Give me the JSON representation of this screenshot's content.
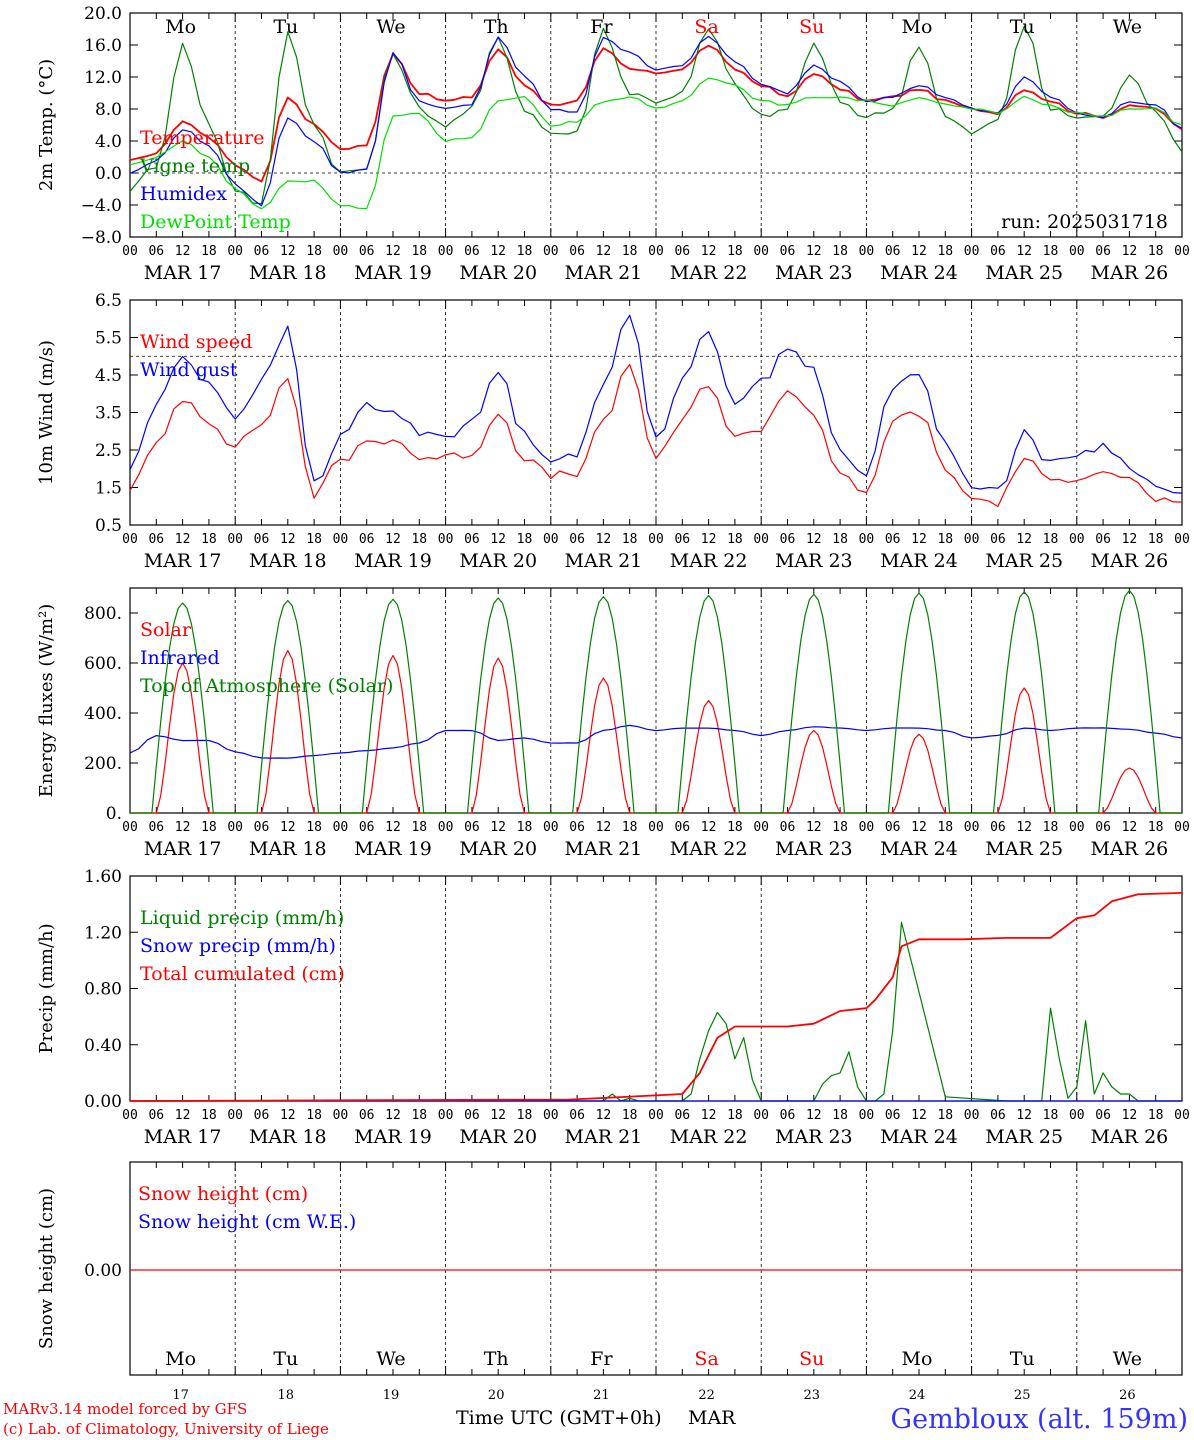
{
  "run_label": "run: 2025031718",
  "footer": {
    "model": "MARv3.14 model forced by GFS",
    "credit": "(c) Lab. of Climatology, University of Liege",
    "xlabel": "Time UTC (GMT+0h)",
    "month": "MAR",
    "station": "Gembloux (alt. 159m)"
  },
  "days": [
    {
      "dow": "Mo",
      "date": "MAR 17",
      "num": "17",
      "weekend": false
    },
    {
      "dow": "Tu",
      "date": "MAR 18",
      "num": "18",
      "weekend": false
    },
    {
      "dow": "We",
      "date": "MAR 19",
      "num": "19",
      "weekend": false
    },
    {
      "dow": "Th",
      "date": "MAR 20",
      "num": "20",
      "weekend": false
    },
    {
      "dow": "Fr",
      "date": "MAR 21",
      "num": "21",
      "weekend": false
    },
    {
      "dow": "Sa",
      "date": "MAR 22",
      "num": "22",
      "weekend": true
    },
    {
      "dow": "Su",
      "date": "MAR 23",
      "num": "23",
      "weekend": true
    },
    {
      "dow": "Mo",
      "date": "MAR 24",
      "num": "24",
      "weekend": false
    },
    {
      "dow": "Tu",
      "date": "MAR 25",
      "num": "25",
      "weekend": false
    },
    {
      "dow": "We",
      "date": "MAR 26",
      "num": "26",
      "weekend": false
    }
  ],
  "hour_ticks": [
    "00",
    "06",
    "12",
    "18"
  ],
  "colors": {
    "red": "#ff0000",
    "blue": "#0000ff",
    "dark_green": "#008000",
    "light_green": "#00e000",
    "station": "#3333ff",
    "weekend": "#ff0000"
  },
  "chart_data": [
    {
      "type": "line",
      "ylabel": "2m Temp. (°C)",
      "ylim": [
        -8,
        20
      ],
      "yticks": [
        20,
        16,
        12,
        8,
        4,
        0,
        -4,
        -8
      ],
      "ytick_labels": [
        "20.0",
        "16.0",
        "12.0",
        "8.0",
        "4.0",
        "0.0",
        "−4.0",
        "−8.0"
      ],
      "dashed_y": 0,
      "series": [
        {
          "name": "Temperature",
          "color": "#ff0000",
          "x_hours": [
            0,
            6,
            12,
            18,
            24,
            30,
            36,
            42,
            48,
            54,
            60,
            66,
            72,
            78,
            84,
            90,
            96,
            102,
            108,
            114,
            120,
            126,
            132,
            138,
            144,
            150,
            156,
            162,
            168,
            174,
            180,
            186,
            192,
            198,
            204,
            210,
            216,
            222,
            228,
            234,
            240
          ],
          "values": [
            1.5,
            2.5,
            6.5,
            4.5,
            1.0,
            -1.0,
            9.5,
            6.0,
            3.0,
            3.5,
            15.0,
            10.0,
            9.0,
            9.5,
            15.5,
            11.0,
            8.5,
            9.0,
            15.5,
            13.0,
            12.5,
            13.0,
            16.0,
            13.0,
            11.0,
            9.5,
            12.5,
            10.5,
            9.0,
            9.5,
            10.5,
            9.0,
            8.0,
            7.5,
            10.5,
            9.0,
            7.5,
            7.0,
            8.5,
            8.0,
            5.5
          ]
        },
        {
          "name": "Vigne temp",
          "color": "#008000",
          "x_hours": [
            0,
            6,
            12,
            18,
            24,
            30,
            36,
            42,
            48,
            54,
            60,
            66,
            72,
            78,
            84,
            90,
            96,
            102,
            108,
            114,
            120,
            126,
            132,
            138,
            144,
            150,
            156,
            162,
            168,
            174,
            180,
            186,
            192,
            198,
            204,
            210,
            216,
            222,
            228,
            234,
            240
          ],
          "values": [
            -2.0,
            1.0,
            16.0,
            6.0,
            -2.0,
            -4.0,
            17.5,
            6.0,
            0.0,
            0.5,
            15.0,
            8.0,
            6.0,
            8.0,
            17.0,
            8.0,
            5.0,
            5.0,
            18.0,
            10.0,
            9.0,
            10.0,
            18.0,
            11.0,
            7.0,
            8.0,
            16.0,
            9.0,
            7.0,
            8.0,
            16.0,
            7.0,
            5.0,
            6.5,
            18.5,
            8.0,
            7.0,
            7.0,
            12.0,
            8.0,
            3.0
          ]
        },
        {
          "name": "Humidex",
          "color": "#0000ff",
          "x_hours": [
            0,
            6,
            12,
            18,
            24,
            30,
            36,
            42,
            48,
            54,
            60,
            66,
            72,
            78,
            84,
            90,
            96,
            102,
            108,
            114,
            120,
            126,
            132,
            138,
            144,
            150,
            156,
            162,
            168,
            174,
            180,
            186,
            192,
            198,
            204,
            210,
            216,
            222,
            228,
            234,
            240
          ],
          "values": [
            0.0,
            1.5,
            5.5,
            3.5,
            -1.5,
            -4.0,
            7.0,
            4.0,
            0.0,
            0.5,
            15.0,
            9.0,
            8.0,
            8.5,
            17.0,
            12.0,
            8.0,
            7.5,
            17.0,
            15.0,
            13.0,
            13.5,
            17.0,
            14.0,
            11.0,
            10.0,
            13.5,
            11.5,
            9.0,
            9.5,
            11.0,
            9.5,
            8.0,
            7.5,
            12.0,
            9.5,
            7.5,
            7.0,
            9.0,
            8.5,
            5.5
          ]
        },
        {
          "name": "DewPoint Temp",
          "color": "#00e000",
          "x_hours": [
            0,
            6,
            12,
            18,
            24,
            30,
            36,
            42,
            48,
            54,
            60,
            66,
            72,
            78,
            84,
            90,
            96,
            102,
            108,
            114,
            120,
            126,
            132,
            138,
            144,
            150,
            156,
            162,
            168,
            174,
            180,
            186,
            192,
            198,
            204,
            210,
            216,
            222,
            228,
            234,
            240
          ],
          "values": [
            1.0,
            2.0,
            4.0,
            2.0,
            -2.0,
            -4.5,
            -1.0,
            -1.0,
            -4.0,
            -4.5,
            7.0,
            7.5,
            4.0,
            4.5,
            9.0,
            9.5,
            6.0,
            6.5,
            9.0,
            9.5,
            8.0,
            9.0,
            12.0,
            11.0,
            9.0,
            8.5,
            9.5,
            9.5,
            9.0,
            8.5,
            9.5,
            8.5,
            8.0,
            7.5,
            9.5,
            8.5,
            7.5,
            7.0,
            8.0,
            8.0,
            6.0
          ]
        }
      ]
    },
    {
      "type": "line",
      "ylabel": "10m Wind (m/s)",
      "ylim": [
        0.5,
        6.5
      ],
      "yticks": [
        6.5,
        5.5,
        4.5,
        3.5,
        2.5,
        1.5,
        0.5
      ],
      "ytick_labels": [
        "6.5",
        "5.5",
        "4.5",
        "3.5",
        "2.5",
        "1.5",
        "0.5"
      ],
      "dashed_y": 5.0,
      "series": [
        {
          "name": "Wind speed",
          "color": "#ff0000",
          "x_hours": [
            0,
            6,
            12,
            18,
            24,
            30,
            36,
            42,
            48,
            54,
            60,
            66,
            72,
            78,
            84,
            90,
            96,
            102,
            108,
            114,
            120,
            126,
            132,
            138,
            144,
            150,
            156,
            162,
            168,
            174,
            180,
            186,
            192,
            198,
            204,
            210,
            216,
            222,
            228,
            234,
            240
          ],
          "values": [
            1.5,
            2.6,
            3.9,
            3.3,
            2.6,
            3.2,
            4.4,
            1.3,
            2.2,
            2.7,
            2.8,
            2.3,
            2.3,
            2.4,
            3.5,
            2.3,
            1.8,
            1.9,
            3.2,
            4.8,
            2.2,
            3.3,
            4.3,
            2.8,
            3.1,
            4.1,
            3.5,
            1.8,
            1.3,
            3.3,
            3.5,
            2.0,
            1.2,
            1.1,
            2.3,
            1.6,
            1.8,
            2.0,
            1.7,
            1.2,
            1.0
          ]
        },
        {
          "name": "Wind gust",
          "color": "#0000ff",
          "x_hours": [
            0,
            6,
            12,
            18,
            24,
            30,
            36,
            42,
            48,
            54,
            60,
            66,
            72,
            78,
            84,
            90,
            96,
            102,
            108,
            114,
            120,
            126,
            132,
            138,
            144,
            150,
            156,
            162,
            168,
            174,
            180,
            186,
            192,
            198,
            204,
            210,
            216,
            222,
            228,
            234,
            240
          ],
          "values": [
            2.0,
            3.7,
            5.0,
            4.3,
            3.4,
            4.3,
            5.7,
            1.6,
            2.8,
            3.7,
            3.5,
            3.0,
            2.9,
            3.2,
            4.6,
            2.9,
            2.3,
            2.4,
            4.2,
            6.2,
            2.8,
            4.3,
            5.7,
            3.8,
            4.3,
            5.3,
            4.6,
            2.4,
            1.8,
            4.2,
            4.6,
            2.6,
            1.6,
            1.4,
            3.0,
            2.1,
            2.4,
            2.6,
            2.1,
            1.5,
            1.3
          ]
        }
      ]
    },
    {
      "type": "line",
      "ylabel": "Energy fluxes (W/m²)",
      "ylim": [
        0,
        900
      ],
      "yticks": [
        800,
        600,
        400,
        200,
        0
      ],
      "ytick_labels": [
        "800.",
        "600.",
        "400.",
        "200.",
        "0."
      ],
      "series": [
        {
          "name": "Solar",
          "color": "#ff0000",
          "peaks": [
            600,
            650,
            630,
            620,
            540,
            450,
            330,
            315,
            500,
            180
          ]
        },
        {
          "name": "Infrared",
          "color": "#0000ff",
          "x_hours": [
            0,
            6,
            12,
            18,
            24,
            30,
            36,
            42,
            48,
            54,
            60,
            66,
            72,
            78,
            84,
            90,
            96,
            102,
            108,
            114,
            120,
            126,
            132,
            138,
            144,
            150,
            156,
            162,
            168,
            174,
            180,
            186,
            192,
            198,
            204,
            210,
            216,
            222,
            228,
            234,
            240
          ],
          "values": [
            240,
            310,
            290,
            290,
            245,
            220,
            220,
            230,
            240,
            250,
            260,
            280,
            330,
            330,
            290,
            300,
            280,
            280,
            330,
            350,
            330,
            340,
            340,
            330,
            310,
            330,
            345,
            340,
            330,
            340,
            340,
            330,
            300,
            310,
            340,
            330,
            340,
            340,
            335,
            320,
            300
          ]
        },
        {
          "name": "Top of Atmosphere (Solar)",
          "color": "#008000",
          "peaks": [
            840,
            850,
            855,
            860,
            865,
            870,
            875,
            880,
            885,
            890
          ]
        }
      ]
    },
    {
      "type": "line",
      "ylabel": "Precip (mm/h)",
      "ylim": [
        0,
        1.6
      ],
      "yticks": [
        1.6,
        1.2,
        0.8,
        0.4,
        0.0
      ],
      "ytick_labels": [
        "1.60",
        "1.20",
        "0.80",
        "0.40",
        "0.00"
      ],
      "series": [
        {
          "name": "Liquid precip (mm/h)",
          "color": "#008000",
          "x_hours": [
            0,
            108,
            110,
            112,
            114,
            116,
            118,
            120,
            122,
            124,
            126,
            128,
            130,
            132,
            134,
            136,
            138,
            140,
            142,
            144,
            150,
            152,
            154,
            156,
            158,
            160,
            162,
            164,
            166,
            168,
            170,
            172,
            174,
            176,
            186,
            200,
            202,
            204,
            206,
            208,
            210,
            212,
            214,
            216,
            218,
            220,
            222,
            224,
            226,
            228,
            230,
            232,
            234,
            240
          ],
          "values": [
            0,
            0,
            0.05,
            0,
            0.02,
            0,
            0,
            0,
            0,
            0,
            0,
            0.05,
            0.3,
            0.5,
            0.63,
            0.55,
            0.3,
            0.45,
            0.15,
            0,
            0,
            0,
            0,
            0,
            0.12,
            0.18,
            0.2,
            0.35,
            0.1,
            0,
            0,
            0.05,
            0.5,
            1.27,
            0.03,
            0,
            0,
            0,
            0,
            0,
            0.66,
            0.3,
            0.02,
            0.1,
            0.57,
            0.05,
            0.2,
            0.1,
            0.05,
            0.05,
            0,
            0,
            0,
            0
          ]
        },
        {
          "name": "Snow precip (mm/h)",
          "color": "#0000ff",
          "x_hours": [
            0,
            240
          ],
          "values": [
            0,
            0
          ]
        },
        {
          "name": "Total cumulated (cm)",
          "color": "#ff0000",
          "x_hours": [
            0,
            100,
            120,
            126,
            130,
            134,
            138,
            142,
            150,
            156,
            162,
            168,
            170,
            174,
            176,
            180,
            190,
            200,
            210,
            216,
            220,
            224,
            230,
            240
          ],
          "values": [
            0,
            0.01,
            0.04,
            0.05,
            0.2,
            0.45,
            0.53,
            0.53,
            0.53,
            0.55,
            0.64,
            0.66,
            0.72,
            0.88,
            1.1,
            1.15,
            1.15,
            1.16,
            1.16,
            1.3,
            1.32,
            1.42,
            1.47,
            1.48
          ]
        }
      ]
    },
    {
      "type": "line",
      "ylabel": "Snow height (cm)",
      "yticks": [
        0
      ],
      "ytick_labels": [
        "0.00"
      ],
      "series": [
        {
          "name": "Snow height (cm)",
          "color": "#ff0000",
          "x_hours": [
            0,
            240
          ],
          "values": [
            0,
            0
          ]
        },
        {
          "name": "Snow height (cm W.E.)",
          "color": "#0000ff",
          "x_hours": [],
          "values": []
        }
      ]
    }
  ]
}
